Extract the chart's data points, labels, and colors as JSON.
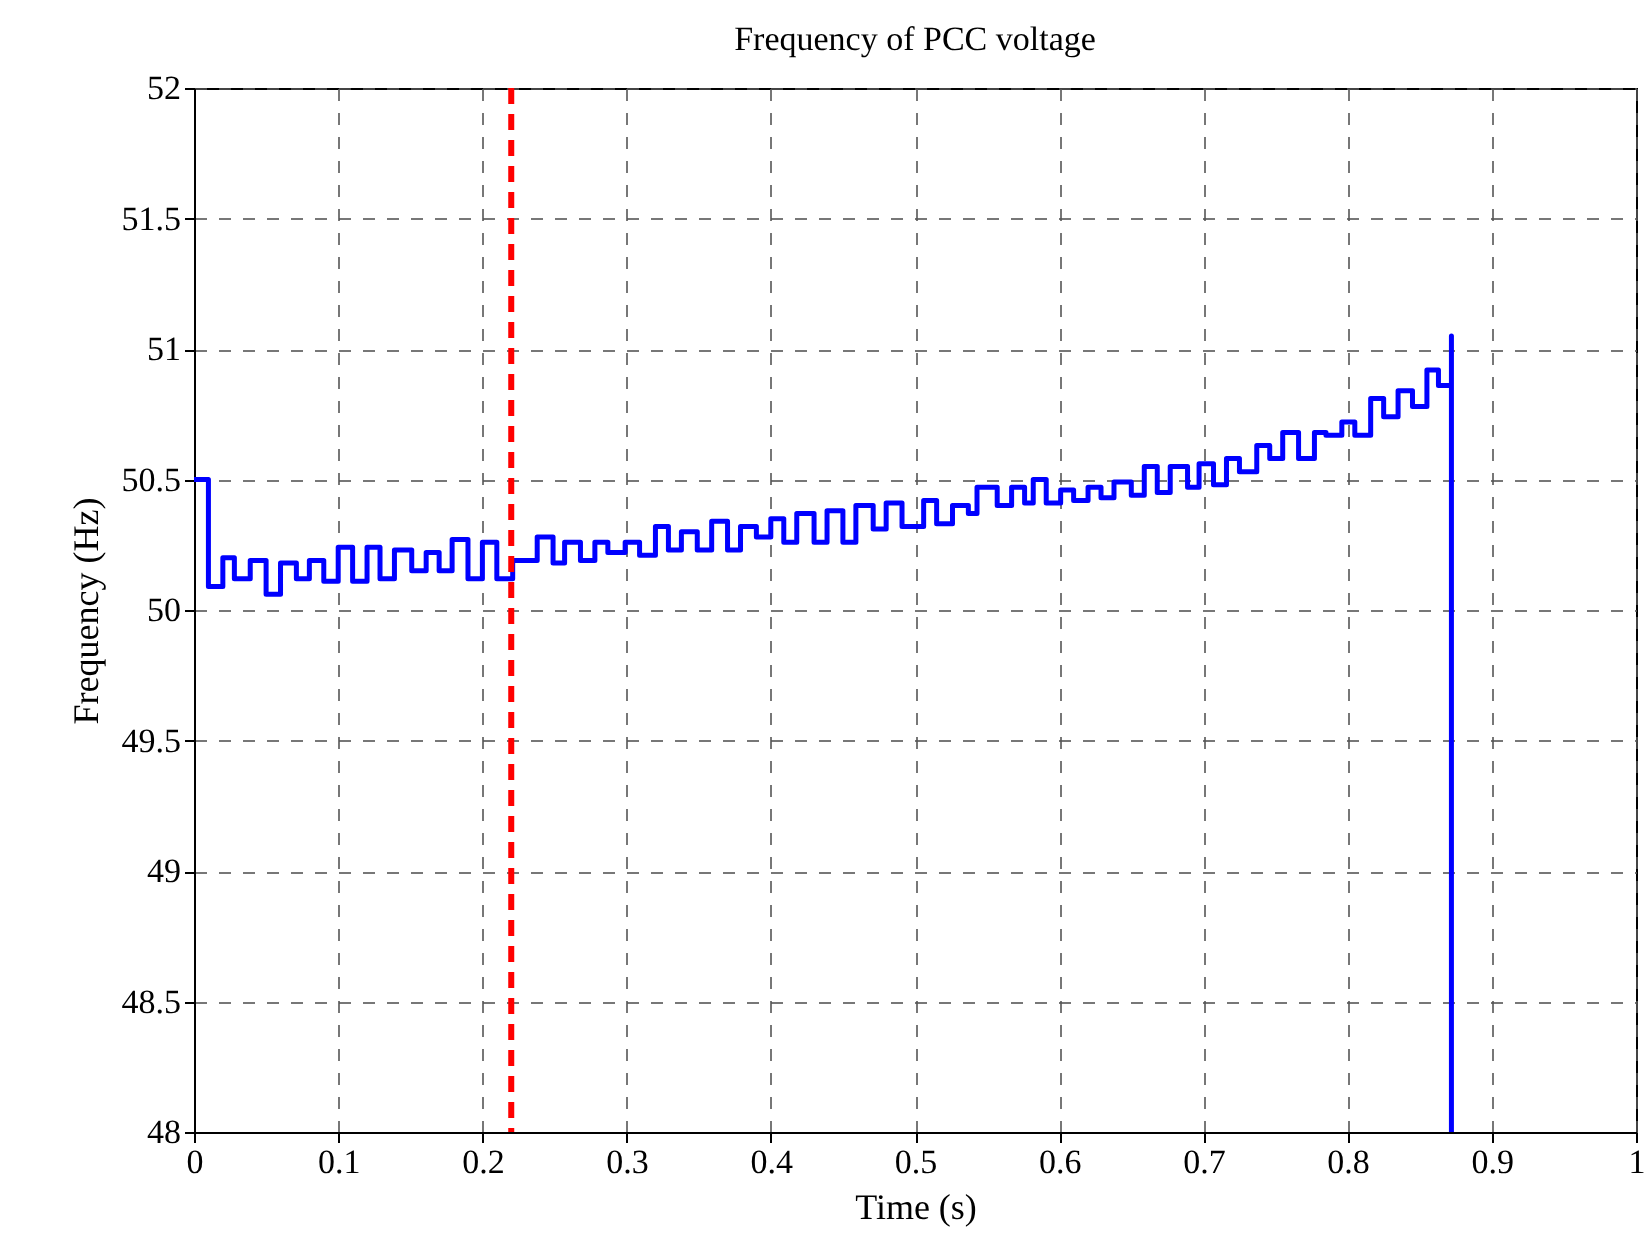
{
  "chart_data": {
    "type": "step",
    "title": "Frequency of PCC voltage",
    "xlabel": "Time (s)",
    "ylabel": "Frequency (Hz)",
    "xlim": [
      0,
      1
    ],
    "xticks": [
      0,
      0.1,
      0.2,
      0.3,
      0.4,
      0.5,
      0.6,
      0.7,
      0.8,
      0.9,
      1
    ],
    "ylim": [
      48,
      52
    ],
    "yticks": [
      48,
      48.5,
      49,
      49.5,
      50,
      50.5,
      51,
      51.5,
      52
    ],
    "grid": true,
    "series": [
      {
        "color": "#0000ff",
        "x": [
          0,
          0.01,
          0.02,
          0.028,
          0.039,
          0.05,
          0.06,
          0.071,
          0.08,
          0.09,
          0.1,
          0.11,
          0.12,
          0.129,
          0.139,
          0.151,
          0.161,
          0.17,
          0.179,
          0.19,
          0.2,
          0.21,
          0.221,
          0.238,
          0.249,
          0.257,
          0.268,
          0.278,
          0.287,
          0.299,
          0.309,
          0.32,
          0.329,
          0.338,
          0.349,
          0.359,
          0.37,
          0.379,
          0.39,
          0.4,
          0.409,
          0.418,
          0.43,
          0.439,
          0.45,
          0.459,
          0.471,
          0.48,
          0.491,
          0.506,
          0.515,
          0.526,
          0.537,
          0.543,
          0.557,
          0.567,
          0.576,
          0.582,
          0.591,
          0.601,
          0.61,
          0.62,
          0.629,
          0.638,
          0.65,
          0.659,
          0.668,
          0.677,
          0.689,
          0.697,
          0.707,
          0.716,
          0.725,
          0.737,
          0.746,
          0.755,
          0.766,
          0.777,
          0.785,
          0.796,
          0.805,
          0.816,
          0.825,
          0.835,
          0.845,
          0.855,
          0.863,
          0.872,
          0.872
        ],
        "values": [
          50.5,
          50.09,
          50.2,
          50.12,
          50.19,
          50.06,
          50.18,
          50.12,
          50.19,
          50.11,
          50.24,
          50.11,
          50.24,
          50.12,
          50.23,
          50.15,
          50.22,
          50.15,
          50.27,
          50.12,
          50.26,
          50.12,
          50.19,
          50.28,
          50.18,
          50.26,
          50.19,
          50.26,
          50.22,
          50.26,
          50.21,
          50.32,
          50.23,
          50.3,
          50.23,
          50.34,
          50.23,
          50.32,
          50.28,
          50.35,
          50.26,
          50.37,
          50.26,
          50.38,
          50.26,
          50.4,
          50.31,
          50.41,
          50.32,
          50.42,
          50.33,
          50.4,
          50.37,
          50.47,
          50.4,
          50.47,
          50.41,
          50.5,
          50.41,
          50.46,
          50.42,
          50.47,
          50.43,
          50.49,
          50.44,
          50.55,
          50.45,
          50.55,
          50.47,
          50.56,
          50.48,
          50.58,
          50.53,
          50.63,
          50.58,
          50.68,
          50.58,
          50.68,
          50.67,
          50.72,
          50.67,
          50.81,
          50.74,
          50.84,
          50.78,
          50.92,
          50.86,
          51.05,
          48
        ]
      }
    ],
    "ref_lines": [
      {
        "axis": "x",
        "value": 0.22,
        "color": "#ff0000",
        "line_style": "dashed"
      }
    ]
  }
}
